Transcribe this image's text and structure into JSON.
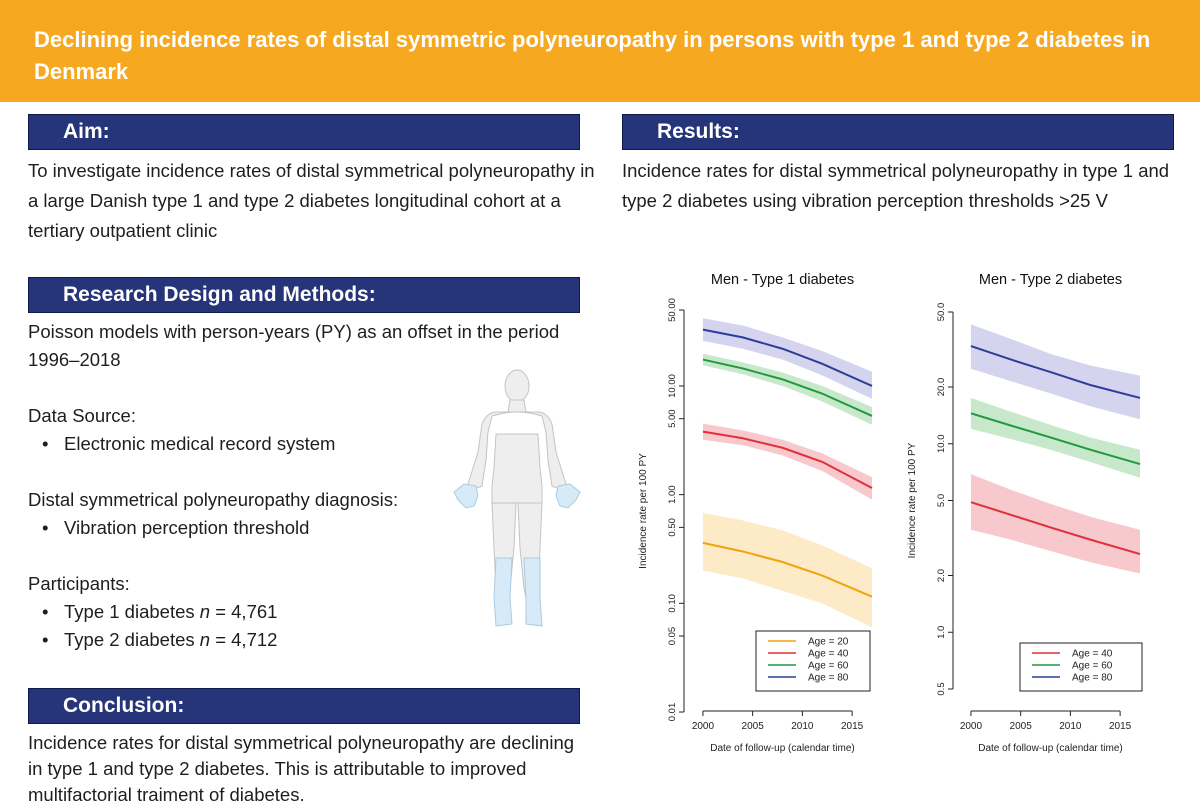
{
  "title": "Declining incidence rates of distal symmetric polyneuropathy in persons with type 1 and type 2 diabetes in Denmark",
  "aim": {
    "header": "Aim:",
    "text": "To investigate incidence rates of distal symmetrical polyneuropathy in a large Danish type 1 and type 2 diabetes longitudinal cohort at a tertiary outpatient clinic"
  },
  "methods": {
    "header": "Research Design and Methods:",
    "intro_line1": "Poisson models with person-years (PY) as an offset in the period",
    "intro_line2": "1996–2018",
    "data_source_label": "Data Source:",
    "data_source_items": [
      "Electronic medical record system"
    ],
    "diagnosis_label": "Distal symmetrical polyneuropathy diagnosis:",
    "diagnosis_items": [
      "Vibration perception threshold"
    ],
    "participants_label": "Participants:",
    "participants_items": [
      {
        "prefix": "Type 1 diabetes ",
        "n_symbol": "n",
        "suffix": " = 4,761"
      },
      {
        "prefix": "Type 2 diabetes ",
        "n_symbol": "n",
        "suffix": " = 4,712"
      }
    ]
  },
  "conclusion": {
    "header": "Conclusion:",
    "text": "Incidence rates for distal symmetrical polyneuropathy are declining in type 1 and type 2 diabetes. This is attributable to improved multifactorial traiment of diabetes."
  },
  "results": {
    "header": "Results:",
    "text_main": "Incidence rates for distal symmetrical polyneuropathy in type 1 and type 2 diabetes using vibration perception thresholds",
    "text_threshold": ">25 V"
  },
  "chart_data": [
    {
      "type": "line",
      "title": "Men - Type 1 diabetes",
      "xlabel": "Date of follow-up (calendar time)",
      "ylabel": "Incidence rate per 100 PY",
      "y_scale": "log",
      "xlim": [
        1999,
        2017
      ],
      "ylim": [
        0.01,
        50
      ],
      "x_ticks": [
        2000,
        2005,
        2010,
        2015
      ],
      "y_ticks": [
        0.01,
        0.05,
        0.1,
        0.5,
        1.0,
        5.0,
        10.0,
        50.0
      ],
      "y_tick_labels": [
        "0.01",
        "0.05",
        "0.10",
        "0.50",
        "1.00",
        "5.00",
        "10.00",
        "50.00"
      ],
      "grid": false,
      "legend": "bottom-right",
      "x": [
        2000,
        2004,
        2008,
        2012,
        2017
      ],
      "series": [
        {
          "name": "Age = 20",
          "color": "#f0a30a",
          "band_color": "#fdebc8",
          "values": [
            0.36,
            0.3,
            0.24,
            0.18,
            0.115
          ],
          "lower": [
            0.2,
            0.17,
            0.13,
            0.1,
            0.06
          ],
          "upper": [
            0.68,
            0.58,
            0.47,
            0.34,
            0.21
          ]
        },
        {
          "name": "Age = 40",
          "color": "#e0303a",
          "band_color": "#f7c8cc",
          "values": [
            3.8,
            3.3,
            2.7,
            2.0,
            1.15
          ],
          "lower": [
            3.2,
            2.85,
            2.3,
            1.65,
            0.9
          ],
          "upper": [
            4.5,
            3.9,
            3.2,
            2.4,
            1.45
          ]
        },
        {
          "name": "Age = 60",
          "color": "#1f9a3c",
          "band_color": "#c8e8cc",
          "values": [
            17.5,
            14.5,
            11.5,
            8.5,
            5.3
          ],
          "lower": [
            15.5,
            12.8,
            10.0,
            7.2,
            4.4
          ],
          "upper": [
            19.8,
            16.5,
            13.3,
            10.0,
            6.4
          ]
        },
        {
          "name": "Age = 80",
          "color": "#2b3f98",
          "band_color": "#d4d4ee",
          "values": [
            33,
            28,
            22,
            16,
            10
          ],
          "lower": [
            26,
            22,
            17.5,
            12.5,
            7.6
          ],
          "upper": [
            42,
            36,
            28,
            21,
            13.5
          ]
        }
      ]
    },
    {
      "type": "line",
      "title": "Men - Type 2 diabetes",
      "xlabel": "Date of follow-up (calendar time)",
      "ylabel": "Incidence rate per 100 PY",
      "y_scale": "log",
      "xlim": [
        1999,
        2017
      ],
      "ylim": [
        0.5,
        50
      ],
      "x_ticks": [
        2000,
        2005,
        2010,
        2015
      ],
      "y_ticks": [
        0.5,
        1.0,
        2.0,
        5.0,
        10.0,
        20.0,
        50.0
      ],
      "y_tick_labels": [
        "0.5",
        "1.0",
        "2.0",
        "5.0",
        "10.0",
        "20.0",
        "50.0"
      ],
      "grid": false,
      "legend": "bottom-right",
      "x": [
        2000,
        2004,
        2008,
        2012,
        2017
      ],
      "series": [
        {
          "name": "Age = 40",
          "color": "#e0303a",
          "band_color": "#f7c8cc",
          "values": [
            4.9,
            4.2,
            3.6,
            3.1,
            2.6
          ],
          "lower": [
            3.5,
            3.1,
            2.7,
            2.35,
            2.05
          ],
          "upper": [
            6.9,
            5.7,
            4.8,
            4.1,
            3.5
          ]
        },
        {
          "name": "Age = 60",
          "color": "#1f9a3c",
          "band_color": "#c8e8cc",
          "values": [
            14.5,
            12.5,
            10.8,
            9.3,
            7.8
          ],
          "lower": [
            12.0,
            10.6,
            9.3,
            8.0,
            6.6
          ],
          "upper": [
            17.5,
            14.8,
            12.6,
            10.8,
            9.3
          ]
        },
        {
          "name": "Age = 80",
          "color": "#2b3f98",
          "band_color": "#d4d4ee",
          "values": [
            33,
            28,
            24,
            20.5,
            17.5
          ],
          "lower": [
            25,
            21.5,
            18.5,
            15.8,
            13.5
          ],
          "upper": [
            43,
            36,
            30,
            26,
            23
          ]
        }
      ]
    }
  ]
}
